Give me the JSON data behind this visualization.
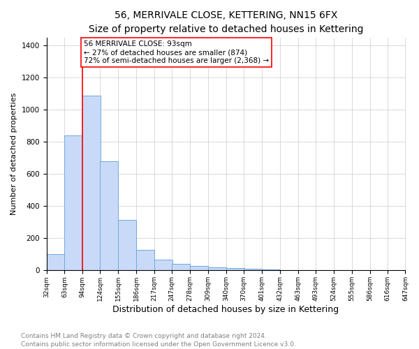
{
  "title": "56, MERRIVALE CLOSE, KETTERING, NN15 6FX",
  "subtitle": "Size of property relative to detached houses in Kettering",
  "xlabel": "Distribution of detached houses by size in Kettering",
  "ylabel": "Number of detached properties",
  "bins": [
    32,
    63,
    94,
    124,
    155,
    186,
    217,
    247,
    278,
    309,
    340,
    370,
    401,
    432,
    463,
    493,
    524,
    555,
    586,
    616,
    647
  ],
  "counts": [
    100,
    840,
    1090,
    680,
    315,
    130,
    65,
    40,
    30,
    20,
    15,
    10,
    5,
    0,
    0,
    0,
    0,
    0,
    0,
    0
  ],
  "bar_color": "#c9daf8",
  "bar_edge_color": "#6fa8dc",
  "red_line_x": 94,
  "annotation_lines": [
    "56 MERRIVALE CLOSE: 93sqm",
    "← 27% of detached houses are smaller (874)",
    "72% of semi-detached houses are larger (2,368) →"
  ],
  "ylim": [
    0,
    1450
  ],
  "yticks": [
    0,
    200,
    400,
    600,
    800,
    1000,
    1200,
    1400
  ],
  "footnote": "Contains HM Land Registry data © Crown copyright and database right 2024.\nContains public sector information licensed under the Open Government Licence v3.0.",
  "title_fontsize": 10,
  "xlabel_fontsize": 9,
  "ylabel_fontsize": 8,
  "tick_labels": [
    "32sqm",
    "63sqm",
    "94sqm",
    "124sqm",
    "155sqm",
    "186sqm",
    "217sqm",
    "247sqm",
    "278sqm",
    "309sqm",
    "340sqm",
    "370sqm",
    "401sqm",
    "432sqm",
    "463sqm",
    "493sqm",
    "524sqm",
    "555sqm",
    "586sqm",
    "616sqm",
    "647sqm"
  ],
  "footnote_fontsize": 6.5,
  "annotation_fontsize": 7.5
}
